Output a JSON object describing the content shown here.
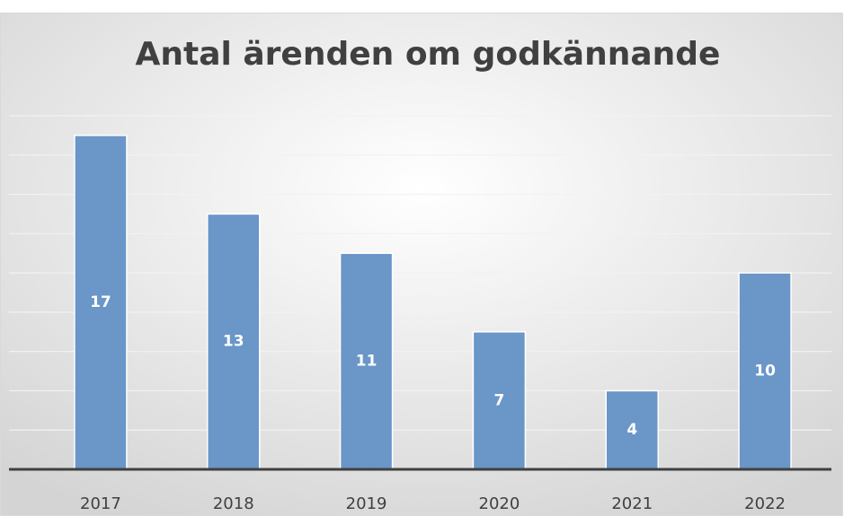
{
  "chart_data": {
    "type": "bar",
    "title": "Antal ärenden om godkännande",
    "categories": [
      "2017",
      "2018",
      "2019",
      "2020",
      "2021",
      "2022"
    ],
    "values": [
      17,
      13,
      11,
      7,
      4,
      10
    ],
    "color": "#6a96c8",
    "ylim": [
      0,
      18
    ],
    "yticks": [
      0,
      2,
      4,
      6,
      8,
      10,
      12,
      14,
      16,
      18
    ],
    "grid": true
  }
}
